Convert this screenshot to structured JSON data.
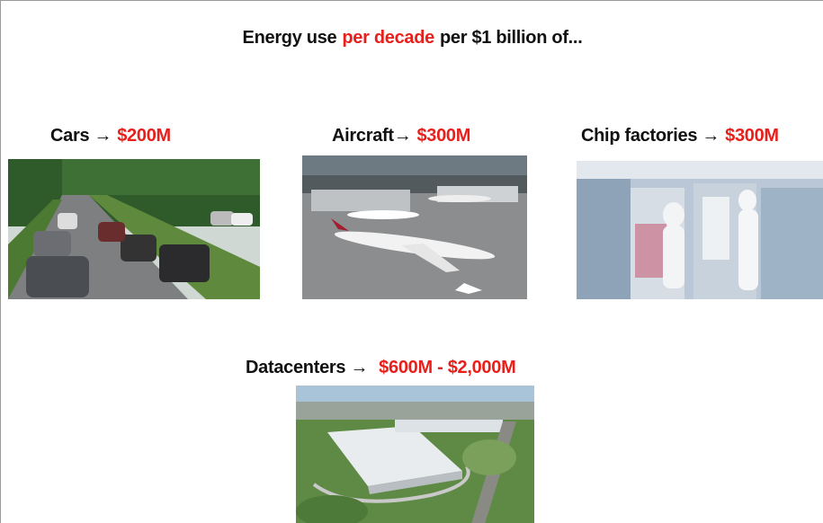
{
  "title": {
    "parts": [
      "Energy use",
      "per decade",
      "per $1 billion of..."
    ]
  },
  "items": [
    {
      "label": "Cars →",
      "value": "$200M"
    },
    {
      "label": "Aircraft→",
      "value": "$300M"
    },
    {
      "label": "Chip factories →",
      "value": "$300M"
    },
    {
      "label": "Datacenters →",
      "value": "$600M - $2,000M"
    }
  ]
}
